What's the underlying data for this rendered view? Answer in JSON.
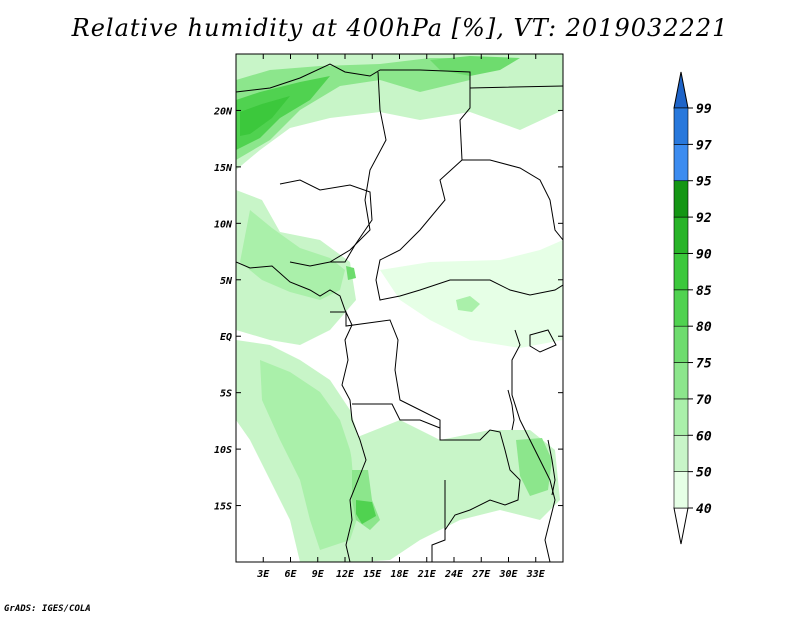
{
  "title": "Relative humidity at 400hPa [%], VT: 2019032221",
  "credit": "GrADS: IGES/COLA",
  "map": {
    "lon_range": [
      0,
      36
    ],
    "lat_range": [
      -20,
      25
    ],
    "lon_ticks": [
      {
        "value": 3,
        "label": "3E"
      },
      {
        "value": 6,
        "label": "6E"
      },
      {
        "value": 9,
        "label": "9E"
      },
      {
        "value": 12,
        "label": "12E"
      },
      {
        "value": 15,
        "label": "15E"
      },
      {
        "value": 18,
        "label": "18E"
      },
      {
        "value": 21,
        "label": "21E"
      },
      {
        "value": 24,
        "label": "24E"
      },
      {
        "value": 27,
        "label": "27E"
      },
      {
        "value": 30,
        "label": "30E"
      },
      {
        "value": 33,
        "label": "33E"
      }
    ],
    "lat_ticks": [
      {
        "value": 20,
        "label": "20N"
      },
      {
        "value": 15,
        "label": "15N"
      },
      {
        "value": 10,
        "label": "10N"
      },
      {
        "value": 5,
        "label": "5N"
      },
      {
        "value": 0,
        "label": "EQ"
      },
      {
        "value": -5,
        "label": "5S"
      },
      {
        "value": -10,
        "label": "10S"
      },
      {
        "value": -15,
        "label": "15S"
      }
    ]
  },
  "colorbar": {
    "levels": [
      "40",
      "50",
      "60",
      "70",
      "75",
      "80",
      "85",
      "90",
      "92",
      "95",
      "97",
      "99"
    ],
    "colors": [
      "#e6ffe6",
      "#c8f5c8",
      "#aaf0aa",
      "#8ce68c",
      "#6edc6e",
      "#50d250",
      "#3cc83c",
      "#28b428",
      "#149614",
      "#3c8cf0",
      "#2878dc",
      "#1e64c8"
    ],
    "low_cap_color": "#ffffff",
    "high_cap_color": "#1e64c8"
  }
}
